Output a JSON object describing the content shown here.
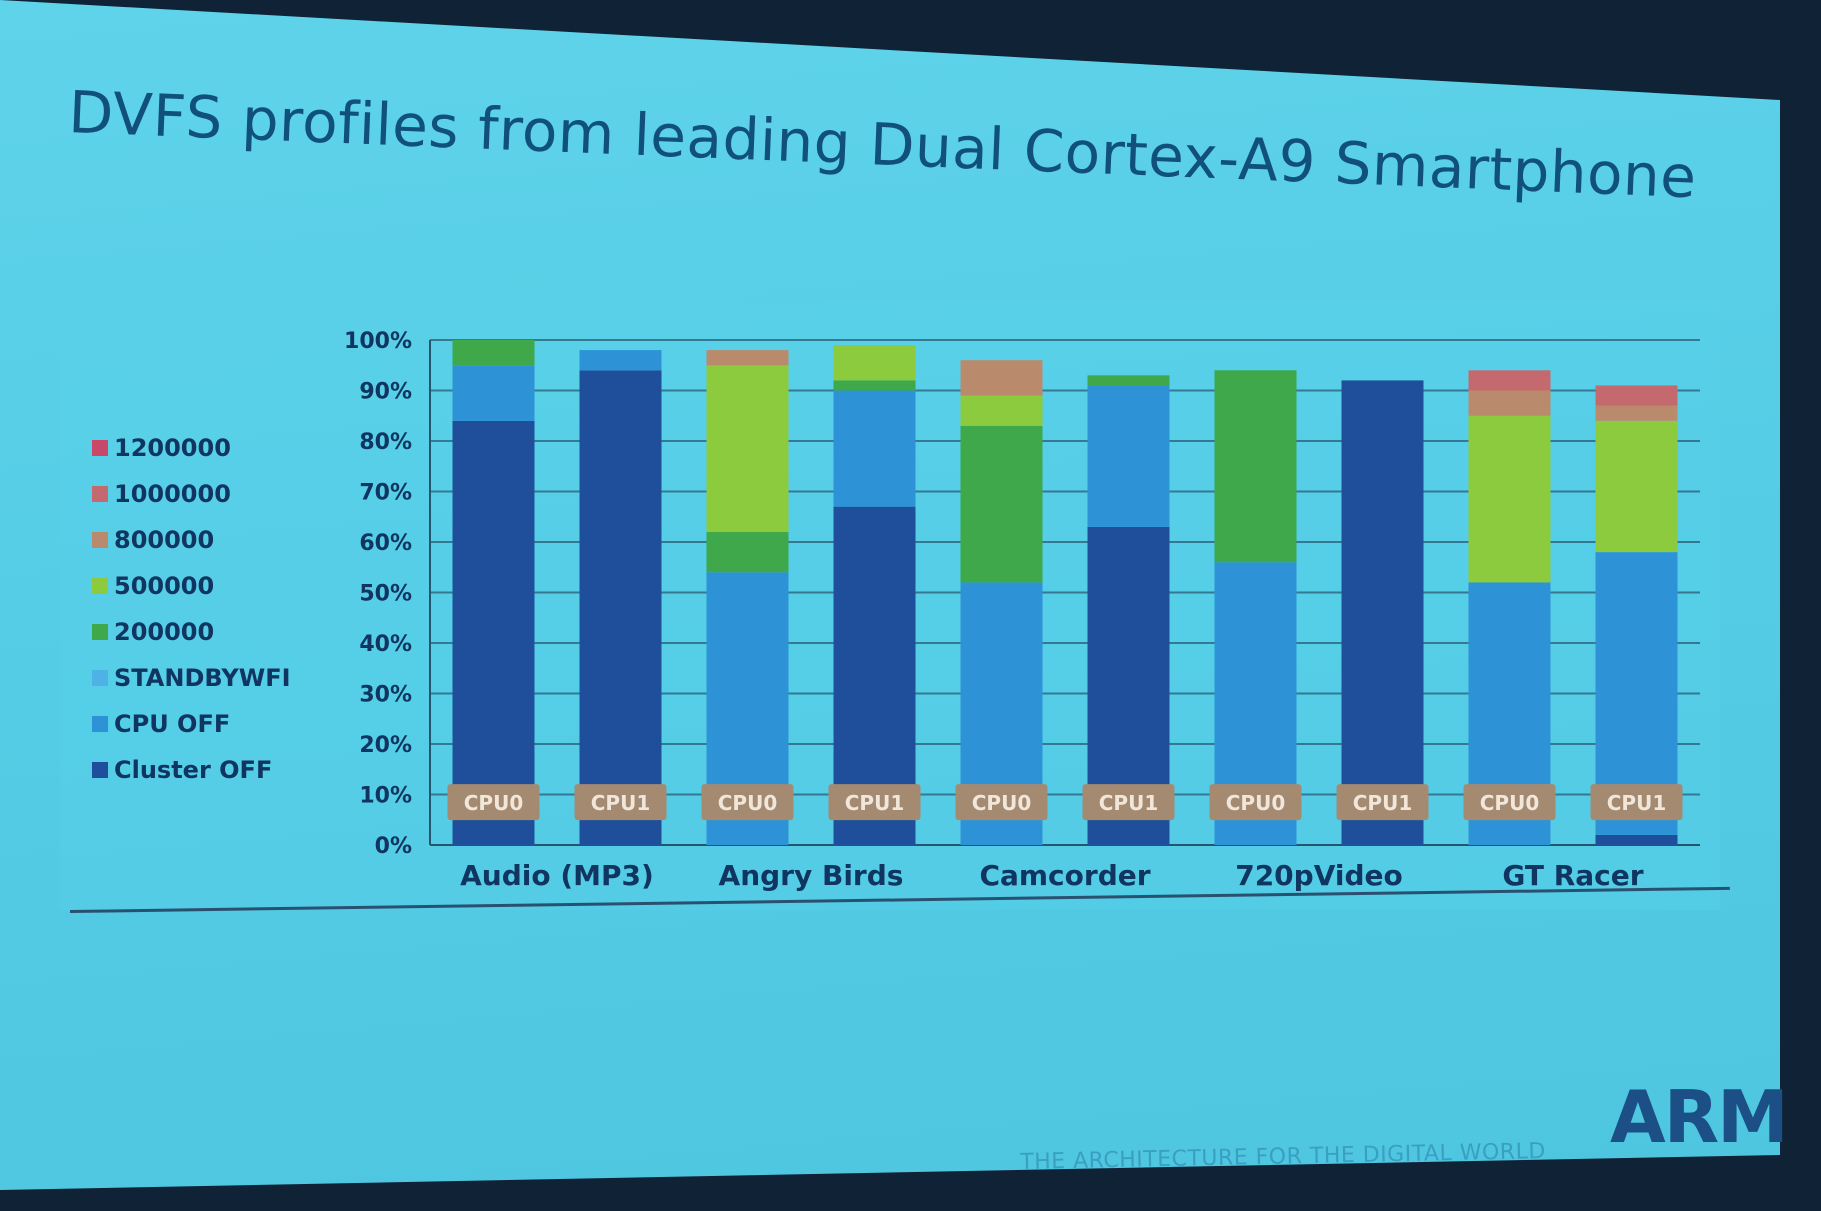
{
  "slide": {
    "title": "DVFS profiles from leading Dual Cortex-A9 Smartphone",
    "logo": "ARM",
    "tagline": "THE ARCHITECTURE FOR THE DIGITAL WORLD"
  },
  "chart_data": {
    "type": "bar",
    "stacked": true,
    "title": "",
    "xlabel": "",
    "ylabel": "",
    "ylim": [
      0,
      100
    ],
    "y_ticks": [
      "0%",
      "10%",
      "20%",
      "30%",
      "40%",
      "50%",
      "60%",
      "70%",
      "80%",
      "90%",
      "100%"
    ],
    "groups": [
      "Audio (MP3)",
      "Angry Birds",
      "Camcorder",
      "720pVideo",
      "GT Racer"
    ],
    "categories": [
      "CPU0",
      "CPU1",
      "CPU0",
      "CPU1",
      "CPU0",
      "CPU1",
      "CPU0",
      "CPU1",
      "CPU0",
      "CPU1"
    ],
    "grid": true,
    "legend_position": "left",
    "series": [
      {
        "name": "Cluster OFF",
        "color": "#1f4f9a",
        "values": [
          84,
          94,
          0,
          67,
          0,
          63,
          0,
          92,
          0,
          2
        ]
      },
      {
        "name": "CPU OFF",
        "color": "#2e93d6",
        "values": [
          11,
          4,
          54,
          23,
          52,
          28,
          56,
          0,
          52,
          56
        ]
      },
      {
        "name": "STANDBYWFI",
        "color": "#4fb2e6",
        "values": [
          0,
          0,
          0,
          0,
          0,
          0,
          0,
          0,
          0,
          0
        ]
      },
      {
        "name": "200000",
        "color": "#3ea84a",
        "values": [
          5,
          0,
          8,
          2,
          31,
          2,
          38,
          0,
          0,
          0
        ]
      },
      {
        "name": "500000",
        "color": "#8cca3e",
        "values": [
          0,
          0,
          33,
          7,
          6,
          0,
          0,
          0,
          33,
          26
        ]
      },
      {
        "name": "800000",
        "color": "#b98a6c",
        "values": [
          0,
          0,
          3,
          0,
          7,
          0,
          0,
          0,
          5,
          3
        ]
      },
      {
        "name": "1000000",
        "color": "#c46a6e",
        "values": [
          0,
          0,
          0,
          0,
          0,
          0,
          0,
          0,
          4,
          4
        ]
      },
      {
        "name": "1200000",
        "color": "#c9486a",
        "values": [
          0,
          0,
          0,
          0,
          0,
          0,
          0,
          0,
          0,
          0
        ]
      }
    ],
    "legend_order": [
      "1200000",
      "1000000",
      "800000",
      "500000",
      "200000",
      "STANDBYWFI",
      "CPU OFF",
      "Cluster OFF"
    ]
  }
}
